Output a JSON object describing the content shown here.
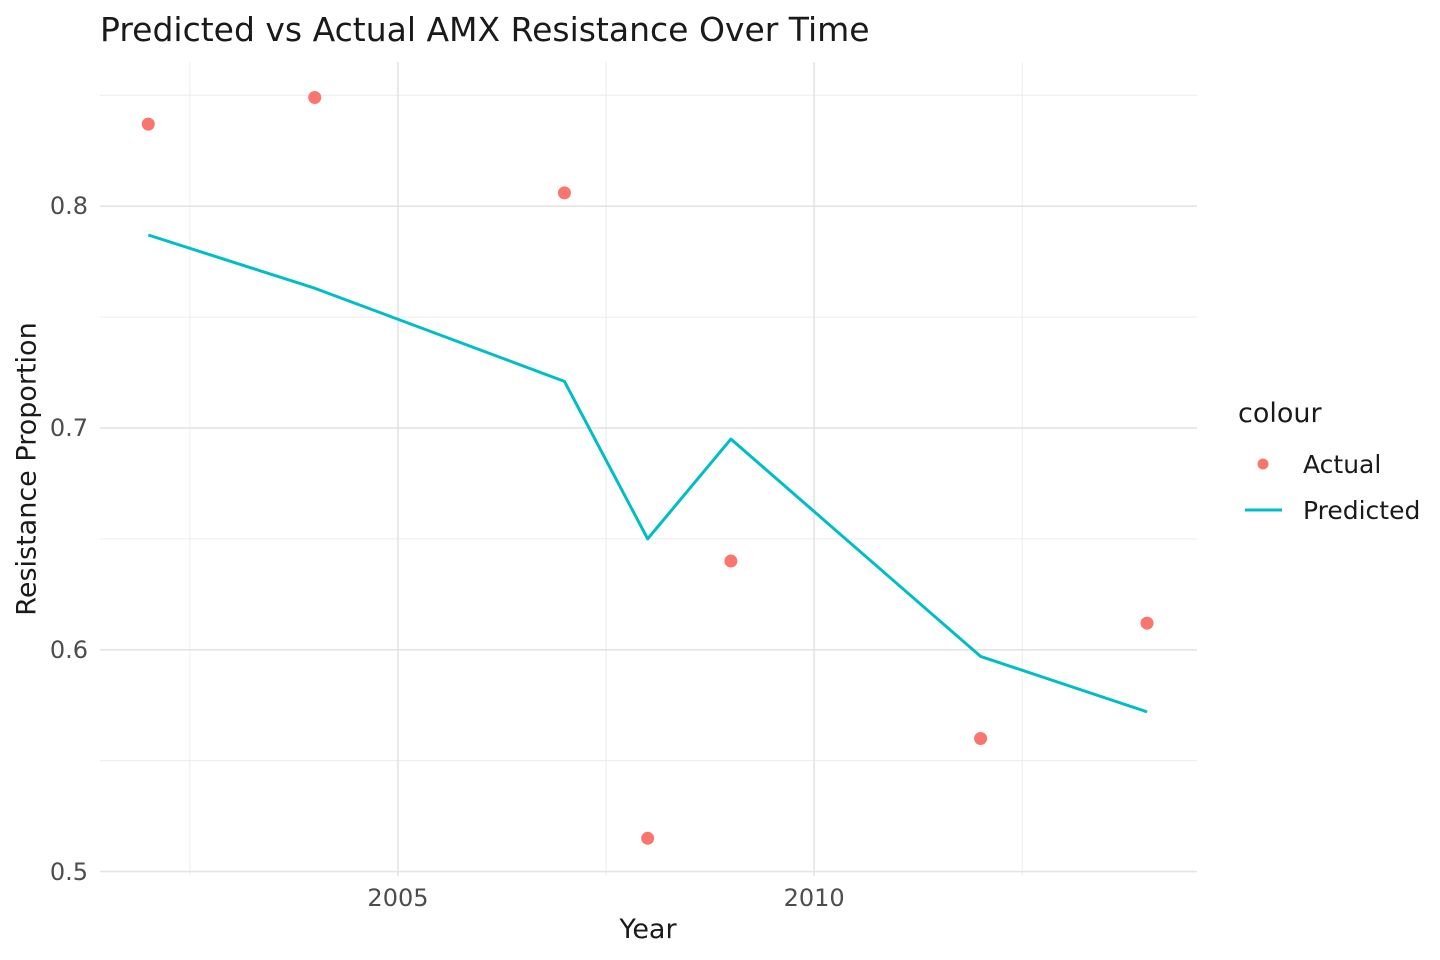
{
  "title": "Predicted vs Actual AMX Resistance Over Time",
  "axes": {
    "x": {
      "label": "Year",
      "tick_labels": [
        "2005",
        "2010"
      ],
      "tick_values": [
        2005,
        2010
      ],
      "minor_tick_values": [
        2002.5,
        2007.5,
        2012.5
      ],
      "range": [
        2001.42,
        2014.6
      ]
    },
    "y": {
      "label": "Resistance Proportion",
      "tick_labels": [
        "0.5",
        "0.6",
        "0.7",
        "0.8"
      ],
      "tick_values": [
        0.5,
        0.6,
        0.7,
        0.8
      ],
      "minor_tick_values": [
        0.55,
        0.65,
        0.75,
        0.85
      ],
      "range": [
        0.498,
        0.865
      ]
    }
  },
  "legend": {
    "title": "colour",
    "entries": [
      {
        "label": "Actual",
        "key": "point",
        "color": "#F8766D"
      },
      {
        "label": "Predicted",
        "key": "line",
        "color": "#00BFC4"
      }
    ]
  },
  "chart_data": {
    "type": "scatter",
    "title": "Predicted vs Actual AMX Resistance Over Time",
    "xlabel": "Year",
    "ylabel": "Resistance Proportion",
    "xlim": [
      2001.42,
      2014.6
    ],
    "ylim": [
      0.498,
      0.865
    ],
    "grid": true,
    "legend_position": "right",
    "x": [
      2002,
      2004,
      2007,
      2008,
      2009,
      2012,
      2014
    ],
    "series": [
      {
        "name": "Actual",
        "type": "scatter",
        "color": "#F8766D",
        "values": [
          0.837,
          0.849,
          0.806,
          0.515,
          0.64,
          0.56,
          0.612
        ]
      },
      {
        "name": "Predicted",
        "type": "line",
        "color": "#00BFC4",
        "values": [
          0.787,
          0.763,
          0.721,
          0.65,
          0.695,
          0.597,
          0.572
        ]
      }
    ]
  },
  "colors": {
    "actual": "#F8766D",
    "predicted": "#00BFC4",
    "grid_major": "#E4E4E4",
    "grid_minor": "#ECECEC",
    "tick_label": "#4D4D4D",
    "text": "#1a1a1a",
    "background": "#FFFFFF"
  }
}
